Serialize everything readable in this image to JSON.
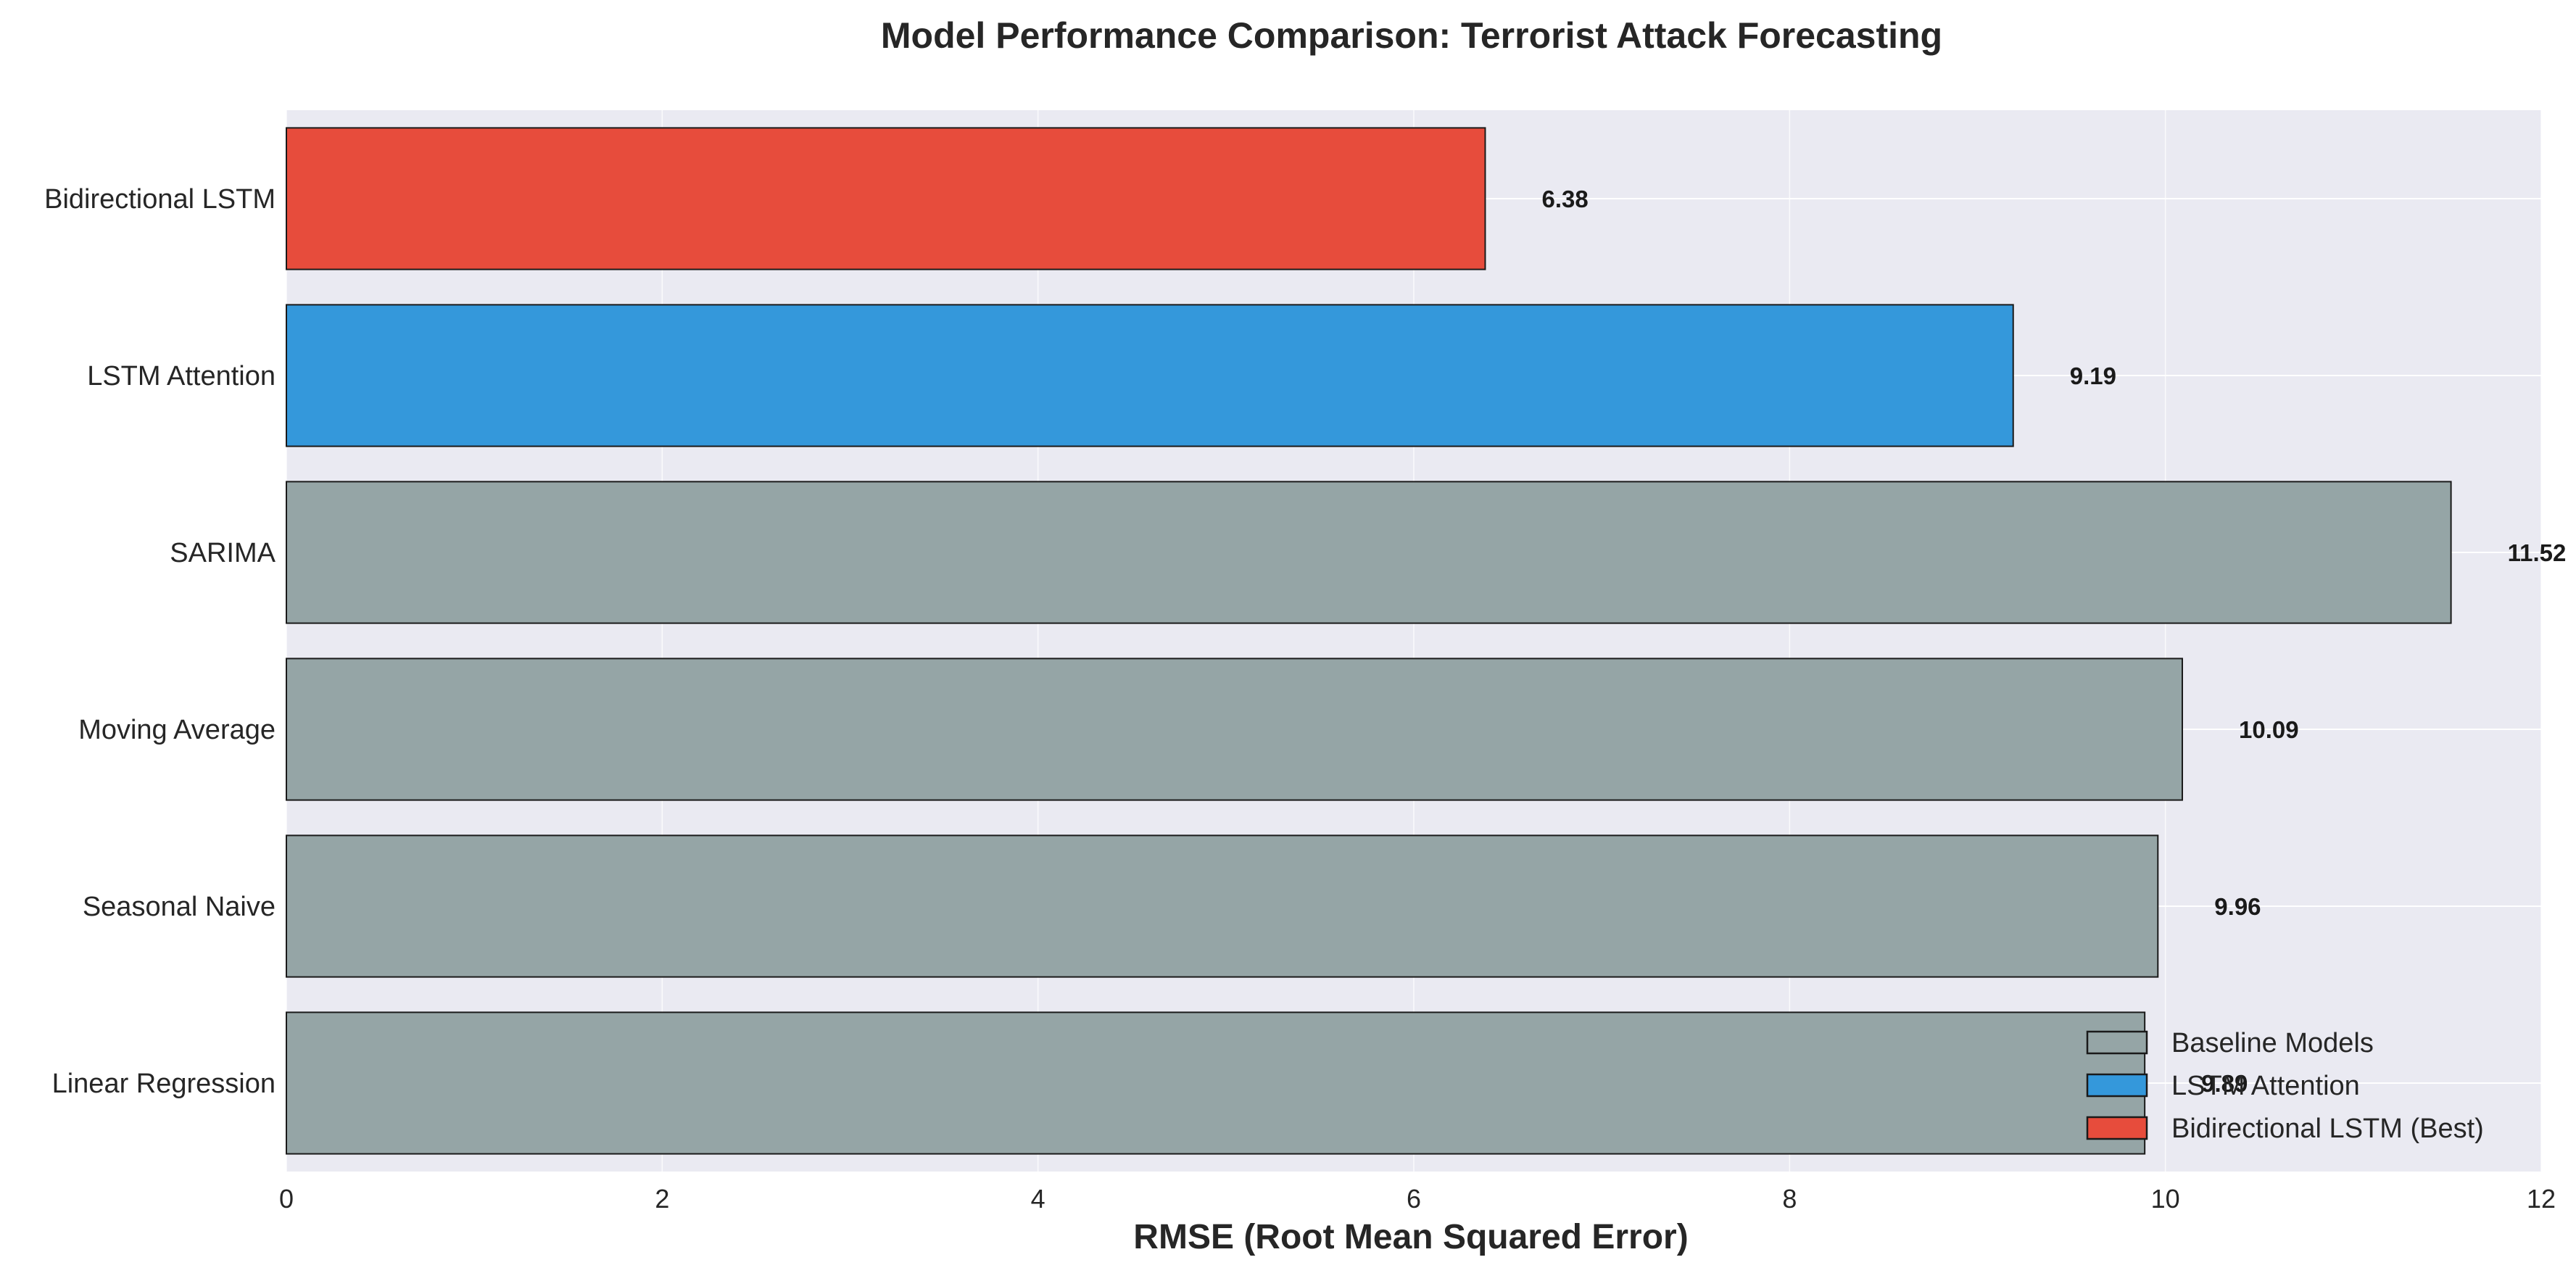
{
  "chart_data": {
    "type": "bar",
    "orientation": "horizontal",
    "title": "Model Performance Comparison: Terrorist Attack Forecasting",
    "xlabel": "RMSE (Root Mean Squared Error)",
    "ylabel": "",
    "xlim": [
      0,
      12
    ],
    "xticks": [
      "0",
      "2",
      "4",
      "6",
      "8",
      "10",
      "12"
    ],
    "categories": [
      "Bidirectional LSTM",
      "LSTM Attention",
      "SARIMA",
      "Moving Average",
      "Seasonal Naive",
      "Linear Regression"
    ],
    "values": [
      6.38,
      9.19,
      11.52,
      10.09,
      9.96,
      9.89
    ],
    "value_labels": [
      "6.38",
      "9.19",
      "11.52",
      "10.09",
      "9.96",
      "9.89"
    ],
    "bar_groups": [
      "best",
      "attention",
      "baseline",
      "baseline",
      "baseline",
      "baseline"
    ],
    "colors": {
      "baseline": "#95a5a6",
      "attention": "#3498db",
      "best": "#e74c3c",
      "plot_background": "#eaeaf2",
      "grid": "#ffffff"
    },
    "grid": true,
    "legend": {
      "placement": "lower-right",
      "entries": [
        {
          "label": "Baseline Models",
          "group": "baseline"
        },
        {
          "label": "LSTM Attention",
          "group": "attention"
        },
        {
          "label": "Bidirectional LSTM (Best)",
          "group": "best"
        }
      ]
    }
  }
}
